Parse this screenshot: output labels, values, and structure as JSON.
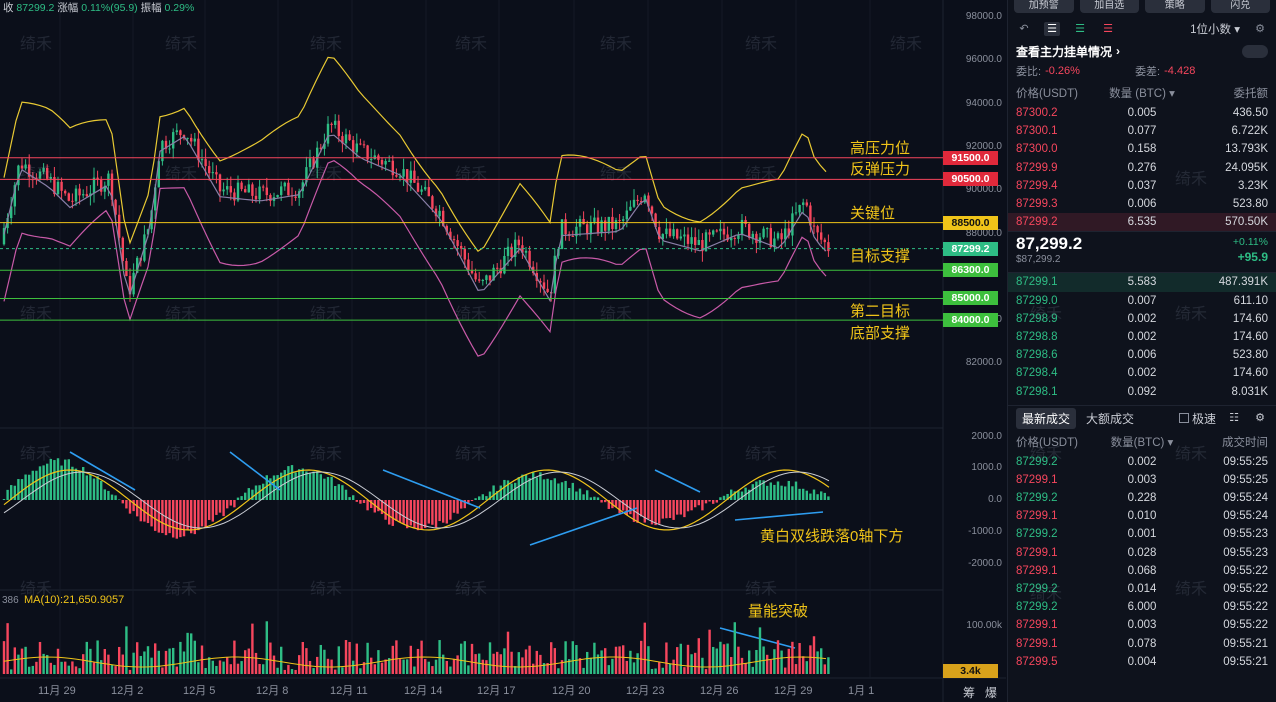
{
  "topbar": {
    "close_label": "收",
    "close": "87299.2",
    "change_label": "涨幅",
    "change": "0.11%(95.9)",
    "amp_label": "振幅",
    "amp": "0.29%"
  },
  "watermark": "绮禾",
  "y_ticks": [
    "98000.0",
    "96000.0",
    "94000.0",
    "92000.0",
    "90000.0",
    "88000.0",
    "84000.0",
    "82000.0"
  ],
  "levels": [
    {
      "name": "高压力位",
      "price": "91500.0",
      "color": "#f6465d"
    },
    {
      "name": "反弹压力",
      "price": "90500.0",
      "color": "#f6465d"
    },
    {
      "name": "关键位",
      "price": "88500.0",
      "color": "#f0c419"
    },
    {
      "name": "目标支撑",
      "price": "86300.0",
      "color": "#3dbf3d"
    },
    {
      "name": "第二目标",
      "price": "85000.0",
      "color": "#3dbf3d"
    },
    {
      "name": "底部支撑",
      "price": "84000.0",
      "color": "#3dbf3d"
    }
  ],
  "current_price_badge": "87299.2",
  "macd_ticks": [
    "2000.0",
    "1000.0",
    "0.0",
    "-1000.0",
    "-2000.0"
  ],
  "macd_note": "黄白双线跌落0轴下方",
  "vol_label_left": "386",
  "vol_ma": "MA(10):21,650.9057",
  "vol_note": "量能突破",
  "vol_tick": "100.00k",
  "vol_badge": "3.4k",
  "x_dates": [
    "11月 29",
    "12月 2",
    "12月 5",
    "12月 8",
    "12月 11",
    "12月 14",
    "12月 17",
    "12月 20",
    "12月 23",
    "12月 26",
    "12月 29",
    "1月 1"
  ],
  "corner": [
    "筹",
    "爆"
  ],
  "panel": {
    "buttons": [
      "加预警",
      "加自选",
      "策略",
      "闪兑"
    ],
    "precision": "1位小数",
    "title": "查看主力挂单情况",
    "ratio_label": "委比:",
    "ratio": "-0.26%",
    "diff_label": "委差:",
    "diff": "-4.428",
    "ob_headers": [
      "价格(USDT)",
      "数量 (BTC)",
      "委托额"
    ],
    "asks": [
      [
        "87300.2",
        "0.005",
        "436.50"
      ],
      [
        "87300.1",
        "0.077",
        "6.722K"
      ],
      [
        "87300.0",
        "0.158",
        "13.793K"
      ],
      [
        "87299.9",
        "0.276",
        "24.095K"
      ],
      [
        "87299.4",
        "0.037",
        "3.23K"
      ],
      [
        "87299.3",
        "0.006",
        "523.80"
      ],
      [
        "87299.2",
        "6.535",
        "570.50K"
      ]
    ],
    "last_price": "87,299.2",
    "last_usd": "$87,299.2",
    "last_pct": "+0.11%",
    "last_chg": "+95.9",
    "bids": [
      [
        "87299.1",
        "5.583",
        "487.391K"
      ],
      [
        "87299.0",
        "0.007",
        "611.10"
      ],
      [
        "87298.9",
        "0.002",
        "174.60"
      ],
      [
        "87298.8",
        "0.002",
        "174.60"
      ],
      [
        "87298.6",
        "0.006",
        "523.80"
      ],
      [
        "87298.4",
        "0.002",
        "174.60"
      ],
      [
        "87298.1",
        "0.092",
        "8.031K"
      ]
    ],
    "trade_tabs": [
      "最新成交",
      "大额成交"
    ],
    "trade_check": "极速",
    "trade_headers": [
      "价格(USDT)",
      "数量(BTC)",
      "成交时间"
    ],
    "trades": [
      [
        "87299.2",
        "0.002",
        "09:55:25",
        "g"
      ],
      [
        "87299.1",
        "0.003",
        "09:55:25",
        "r"
      ],
      [
        "87299.2",
        "0.228",
        "09:55:24",
        "g"
      ],
      [
        "87299.1",
        "0.010",
        "09:55:24",
        "r"
      ],
      [
        "87299.2",
        "0.001",
        "09:55:23",
        "g"
      ],
      [
        "87299.1",
        "0.028",
        "09:55:23",
        "r"
      ],
      [
        "87299.1",
        "0.068",
        "09:55:22",
        "r"
      ],
      [
        "87299.2",
        "0.014",
        "09:55:22",
        "g"
      ],
      [
        "87299.2",
        "6.000",
        "09:55:22",
        "g"
      ],
      [
        "87299.1",
        "0.003",
        "09:55:22",
        "r"
      ],
      [
        "87299.1",
        "0.078",
        "09:55:21",
        "r"
      ],
      [
        "87299.5",
        "0.004",
        "09:55:21",
        "r"
      ]
    ]
  }
}
